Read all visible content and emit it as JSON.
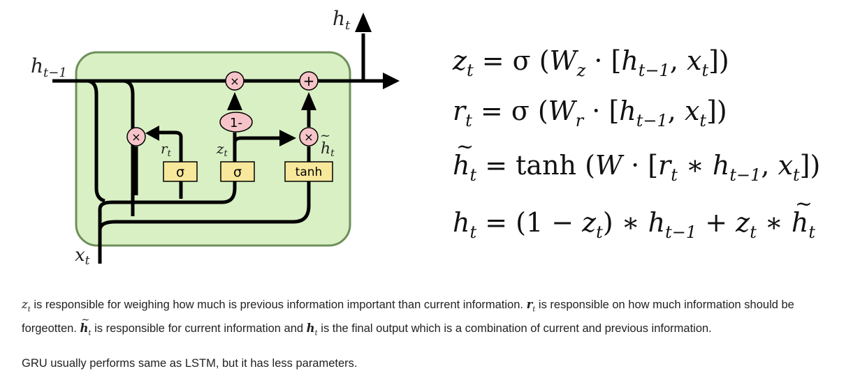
{
  "diagram": {
    "labels": {
      "h_prev": "h",
      "h_prev_sub": "t−1",
      "h_out": "h",
      "h_out_sub": "t",
      "x_in": "x",
      "x_in_sub": "t",
      "r_gate": "r",
      "r_gate_sub": "t",
      "z_gate": "z",
      "z_gate_sub": "t",
      "h_tilde": "h",
      "h_tilde_sub": "t"
    },
    "ops": {
      "mul1": "×",
      "mul2": "×",
      "mul3": "×",
      "add": "+",
      "one_minus": "1-"
    },
    "boxes": {
      "sigma_r": "σ",
      "sigma_z": "σ",
      "tanh": "tanh"
    },
    "colors": {
      "cell_fill": "#d9f0c4",
      "cell_border": "#6e8f5a",
      "op_fill": "#f6c4c8",
      "box_fill": "#f7e89c",
      "line": "#000000"
    }
  },
  "equations": {
    "eq1": {
      "lhs": "z",
      "lhs_sub": "t",
      "rhs_a": " = σ (",
      "W": "W",
      "W_sub": "z",
      "rhs_b": " · [",
      "h": "h",
      "h_sub": "t−1",
      "sep": ", ",
      "x": "x",
      "x_sub": "t",
      "close": "])"
    },
    "eq2": {
      "lhs": "r",
      "lhs_sub": "t",
      "rhs_a": " = σ (",
      "W": "W",
      "W_sub": "r",
      "rhs_b": " · [",
      "h": "h",
      "h_sub": "t−1",
      "sep": ", ",
      "x": "x",
      "x_sub": "t",
      "close": "])"
    },
    "eq3": {
      "lhs": "h",
      "lhs_sub": "t",
      "rhs_a": " = tanh (",
      "W": "W",
      "rhs_b": " · [",
      "r": "r",
      "r_sub": "t",
      "star": " ∗ ",
      "h": "h",
      "h_sub": "t−1",
      "sep": ", ",
      "x": "x",
      "x_sub": "t",
      "close": "])"
    },
    "eq4": {
      "lhs": "h",
      "lhs_sub": "t",
      "rhs_a": " = (1 − ",
      "z": "z",
      "z_sub": "t",
      "rhs_b": ") ∗ ",
      "h": "h",
      "h_sub": "t−1",
      "plus": " + ",
      "z2": "z",
      "z2_sub": "t",
      "star": " ∗ ",
      "ht": "h",
      "ht_sub": "t"
    }
  },
  "text": {
    "p1_z": "z",
    "p1_z_sub": "t",
    "p1_a": " is responsible for weighing how much is previous information important than current information. ",
    "p1_r": "r",
    "p1_r_sub": "t",
    "p1_b": " is responsible on how much information should be",
    "p2_a": "forgeotten. ",
    "p2_h": "h",
    "p2_h_sub": "t",
    "p2_b": " is responsible for current information and ",
    "p2_h2": "h",
    "p2_h2_sub": "t",
    "p2_c": " is the final output which is a combination of current and previous information.",
    "p3": "GRU usually performs same as LSTM, but it has less parameters."
  }
}
